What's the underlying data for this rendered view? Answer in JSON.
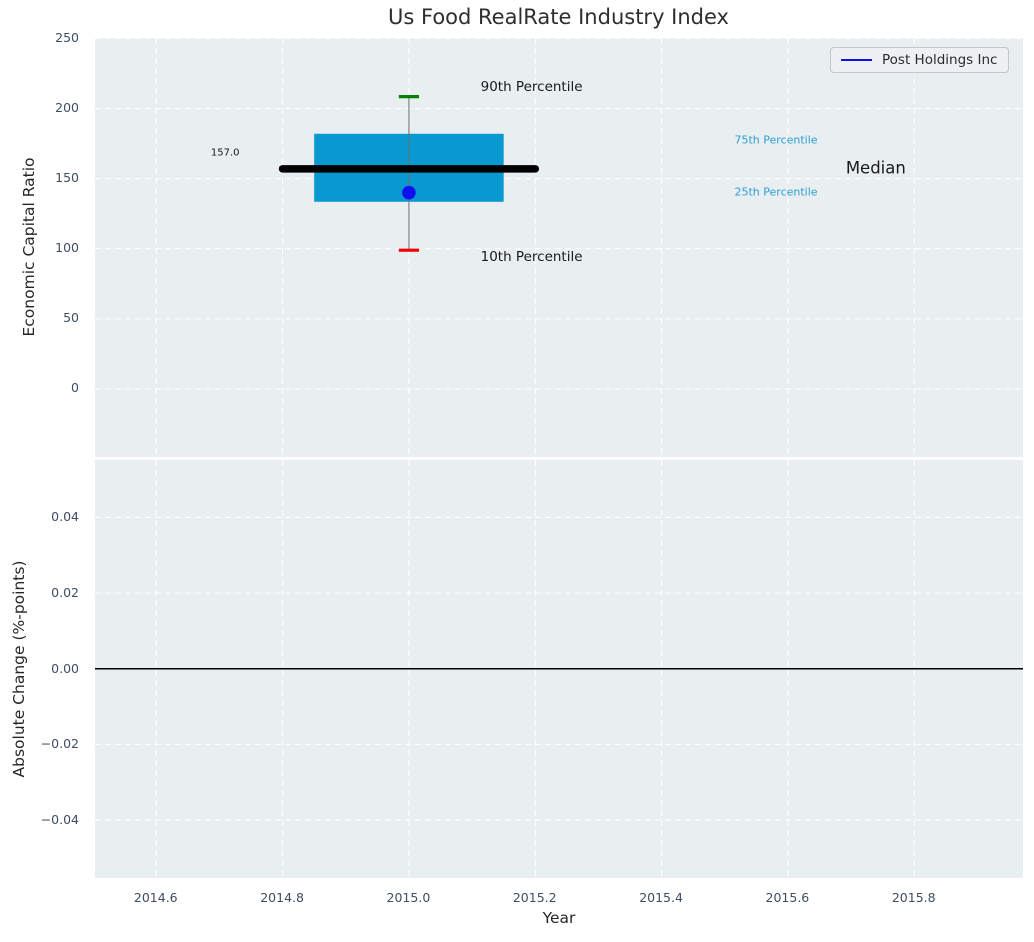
{
  "styles": {
    "panel_bg": "#e9eef0",
    "grid_color": "#ffffff",
    "tick_color": "#3f4e63",
    "text_color": "#262626",
    "title_color": "#2e2e2e"
  },
  "chart_data": [
    {
      "type": "boxplot",
      "title": "Us Food RealRate Industry Index",
      "ylabel": "Economic Capital Ratio",
      "xlabel": "",
      "xlim": [
        2014.503,
        2015.973
      ],
      "ylim": [
        -48.5,
        250.3
      ],
      "grid": true,
      "show_xticklabels": false,
      "xticks": [
        {
          "v": 2014.6,
          "label": "2014.6"
        },
        {
          "v": 2014.8,
          "label": "2014.8"
        },
        {
          "v": 2015.0,
          "label": "2015.0"
        },
        {
          "v": 2015.2,
          "label": "2015.2"
        },
        {
          "v": 2015.4,
          "label": "2015.4"
        },
        {
          "v": 2015.6,
          "label": "2015.6"
        },
        {
          "v": 2015.8,
          "label": "2015.8"
        }
      ],
      "yticks": [
        {
          "v": 0,
          "label": "0"
        },
        {
          "v": 50,
          "label": "50"
        },
        {
          "v": 100,
          "label": "100"
        },
        {
          "v": 150,
          "label": "150"
        },
        {
          "v": 200,
          "label": "200"
        },
        {
          "v": 250,
          "label": "250"
        }
      ],
      "box": {
        "x_center": 2015.0,
        "box_x_range": [
          2014.85,
          2015.15
        ],
        "median_x_range": [
          2014.8,
          2015.2
        ],
        "cap_half_width": 0.016,
        "p10": 99,
        "p25": 133.5,
        "median": 157.0,
        "p75": 182,
        "p90": 208.5,
        "box_color": "#0899d1",
        "median_color": "#000000",
        "whisker_color": "#6e6e6e",
        "p90_cap_color": "#008002",
        "p10_cap_color": "#ee0202"
      },
      "company_point": {
        "label": "Post Holdings Inc",
        "x": 2015.0,
        "value": 140,
        "color": "#1010ee"
      },
      "legend": {
        "label": "Post Holdings Inc",
        "position": "upper right",
        "line_color": "#1010ee"
      },
      "annotations": [
        {
          "text": "157.0",
          "x": 2014.71,
          "y": 168,
          "color": "#1a1a1a",
          "size": 10
        },
        {
          "text": "90th Percentile",
          "x": 2015.195,
          "y": 215,
          "color": "#1a1a1a",
          "size": 13.5
        },
        {
          "text": "10th Percentile",
          "x": 2015.195,
          "y": 94,
          "color": "#1a1a1a",
          "size": 13.5
        },
        {
          "text": "75th Percentile",
          "x": 2015.582,
          "y": 177,
          "color": "#2b9fd4",
          "size": 11
        },
        {
          "text": "25th Percentile",
          "x": 2015.582,
          "y": 140,
          "color": "#2b9fd4",
          "size": 11
        },
        {
          "text": "Median",
          "x": 2015.74,
          "y": 157.5,
          "color": "#1a1a1a",
          "size": 16.5
        }
      ]
    },
    {
      "type": "line",
      "title": "",
      "ylabel": "Absolute Change (%-points)",
      "xlabel": "Year",
      "xlim": [
        2014.503,
        2015.973
      ],
      "ylim": [
        -0.0552,
        0.0552
      ],
      "grid": true,
      "show_xticklabels": true,
      "xticks": [
        {
          "v": 2014.6,
          "label": "2014.6"
        },
        {
          "v": 2014.8,
          "label": "2014.8"
        },
        {
          "v": 2015.0,
          "label": "2015.0"
        },
        {
          "v": 2015.2,
          "label": "2015.2"
        },
        {
          "v": 2015.4,
          "label": "2015.4"
        },
        {
          "v": 2015.6,
          "label": "2015.6"
        },
        {
          "v": 2015.8,
          "label": "2015.8"
        }
      ],
      "yticks": [
        {
          "v": -0.04,
          "label": "−0.04"
        },
        {
          "v": -0.02,
          "label": "−0.02"
        },
        {
          "v": 0.0,
          "label": "0.00"
        },
        {
          "v": 0.02,
          "label": "0.02"
        },
        {
          "v": 0.04,
          "label": "0.04"
        }
      ],
      "zero_line": {
        "y": 0.0,
        "color": "#000000",
        "width": 1.4
      },
      "series": []
    }
  ]
}
